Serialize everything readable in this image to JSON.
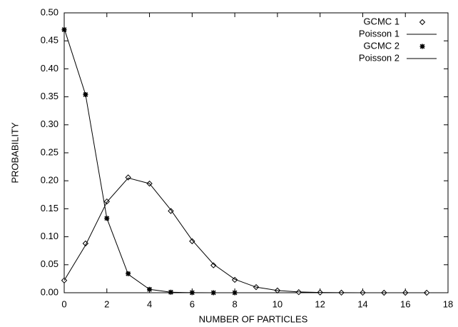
{
  "chart_data": {
    "type": "line",
    "xlabel": "NUMBER OF PARTICLES",
    "ylabel": "PROBABILITY",
    "xlim": [
      0,
      18
    ],
    "xticks": [
      0,
      2,
      4,
      6,
      8,
      10,
      12,
      14,
      16,
      18
    ],
    "ylim": [
      0,
      0.5
    ],
    "yticks": [
      {
        "value": 0,
        "label": "0.00"
      },
      {
        "value": 0.05,
        "label": "0.05"
      },
      {
        "value": 0.1,
        "label": "0.10"
      },
      {
        "value": 0.15,
        "label": "0.15"
      },
      {
        "value": 0.2,
        "label": "0.20"
      },
      {
        "value": 0.25,
        "label": "0.25"
      },
      {
        "value": 0.3,
        "label": "0.30"
      },
      {
        "value": 0.35,
        "label": "0.35"
      },
      {
        "value": 0.4,
        "label": "0.40"
      },
      {
        "value": 0.45,
        "label": "0.45"
      },
      {
        "value": 0.5,
        "label": "0.50"
      }
    ],
    "legend": "upper right",
    "series": [
      {
        "name": "GCMC 1",
        "color": "#000000",
        "marker": "diamond",
        "line": false,
        "x": [
          0,
          1,
          2,
          3,
          4,
          5,
          6,
          7,
          8,
          9,
          10,
          11,
          12,
          13,
          14,
          15,
          16,
          17
        ],
        "values": [
          0.022,
          0.088,
          0.163,
          0.206,
          0.195,
          0.146,
          0.092,
          0.049,
          0.023,
          0.01,
          0.004,
          0.001,
          0.0005,
          0.0002,
          0.0001,
          0,
          0,
          0
        ]
      },
      {
        "name": "Poisson 1",
        "color": "#000000",
        "marker": "none",
        "line": true,
        "x": [
          0,
          1,
          2,
          3,
          4,
          5,
          6,
          7,
          8,
          9,
          10,
          11,
          12,
          13,
          14,
          15,
          16,
          17
        ],
        "values": [
          0.022,
          0.085,
          0.162,
          0.205,
          0.195,
          0.148,
          0.094,
          0.051,
          0.024,
          0.01,
          0.004,
          0.0014,
          0.0005,
          0.0001,
          0,
          0,
          0,
          0
        ]
      },
      {
        "name": "GCMC 2",
        "color": "#000000",
        "marker": "star",
        "line": false,
        "x": [
          0,
          1,
          2,
          3,
          4,
          5,
          6,
          7,
          8
        ],
        "values": [
          0.47,
          0.354,
          0.133,
          0.034,
          0.006,
          0.001,
          0.0002,
          0,
          0
        ]
      },
      {
        "name": "Poisson 2",
        "color": "#000000",
        "marker": "none",
        "line": true,
        "x": [
          0,
          1,
          2,
          3,
          4,
          5,
          6,
          7,
          8
        ],
        "values": [
          0.472,
          0.354,
          0.133,
          0.033,
          0.006,
          0.0009,
          0.0001,
          0,
          0
        ]
      }
    ]
  }
}
